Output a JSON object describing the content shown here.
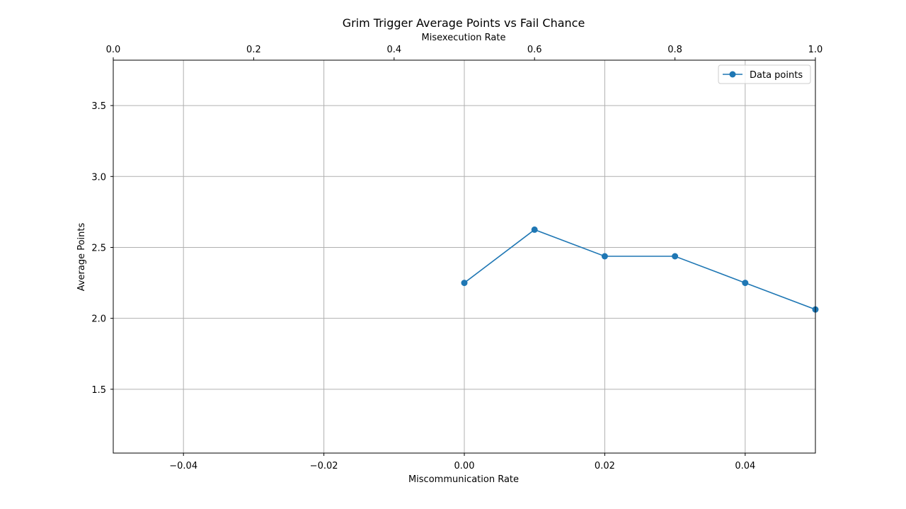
{
  "chart_data": {
    "type": "line",
    "title": "Grim Trigger Average Points vs Fail Chance",
    "xlabel": "Miscommunication Rate",
    "x2label": "Misexecution Rate",
    "ylabel": "Average Points",
    "xlim": [
      -0.05,
      0.05
    ],
    "x2lim": [
      0.0,
      1.0
    ],
    "ylim": [
      1.05,
      3.82
    ],
    "x_ticks": [
      "−0.04",
      "−0.02",
      "0.00",
      "0.02",
      "0.04"
    ],
    "x_tick_values": [
      -0.04,
      -0.02,
      0.0,
      0.02,
      0.04
    ],
    "x2_ticks": [
      "0.0",
      "0.2",
      "0.4",
      "0.6",
      "0.8",
      "1.0"
    ],
    "x2_tick_values": [
      0.0,
      0.2,
      0.4,
      0.6,
      0.8,
      1.0
    ],
    "y_ticks": [
      "1.5",
      "2.0",
      "2.5",
      "3.0",
      "3.5"
    ],
    "y_tick_values": [
      1.5,
      2.0,
      2.5,
      3.0,
      3.5
    ],
    "grid": true,
    "legend": {
      "position": "top-right",
      "entries": [
        "Data points"
      ]
    },
    "series": [
      {
        "name": "Data points",
        "color": "#1f77b4",
        "x": [
          0.0,
          0.01,
          0.02,
          0.03,
          0.04,
          0.05
        ],
        "y": [
          2.25,
          2.625,
          2.4375,
          2.4375,
          2.25,
          2.0625
        ]
      }
    ]
  }
}
